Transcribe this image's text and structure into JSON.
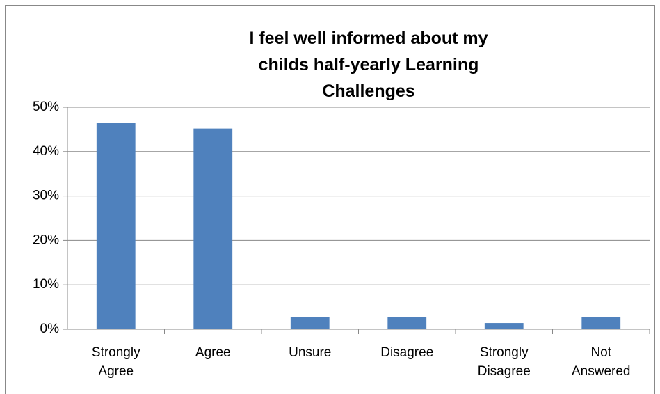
{
  "chart_data": {
    "type": "bar",
    "title": "I feel well informed about my childs half-yearly Learning Challenges",
    "categories": [
      "Strongly Agree",
      "Agree",
      "Unsure",
      "Disagree",
      "Strongly Disagree",
      "Not Answered"
    ],
    "values": [
      46.4,
      45.2,
      2.7,
      2.7,
      1.4,
      2.7
    ],
    "color": "#4f81bd",
    "ylim": [
      0,
      50
    ],
    "yticks": [
      {
        "value": 0,
        "label": "0%"
      },
      {
        "value": 10,
        "label": "10%"
      },
      {
        "value": 20,
        "label": "20%"
      },
      {
        "value": 30,
        "label": "30%"
      },
      {
        "value": 40,
        "label": "40%"
      },
      {
        "value": 50,
        "label": "50%"
      }
    ],
    "grid": true
  }
}
